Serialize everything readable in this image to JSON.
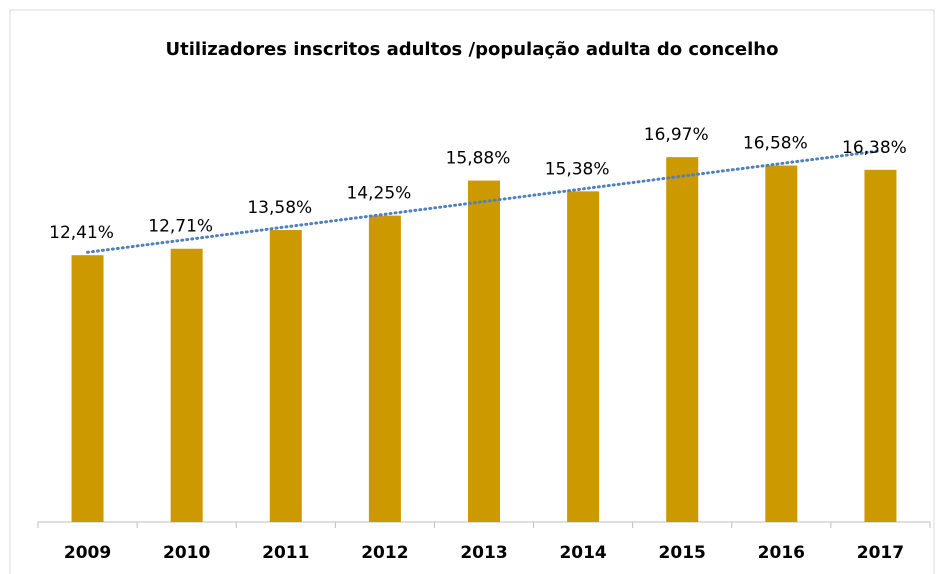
{
  "chart_data": {
    "type": "bar",
    "title": "Utilizadores inscritos adultos /população adulta do concelho",
    "categories": [
      "2009",
      "2010",
      "2011",
      "2012",
      "2013",
      "2014",
      "2015",
      "2016",
      "2017"
    ],
    "values": [
      12.41,
      12.71,
      13.58,
      14.25,
      15.88,
      15.38,
      16.97,
      16.58,
      16.38
    ],
    "value_labels": [
      "12,41%",
      "12,71%",
      "13,58%",
      "14,25%",
      "15,88%",
      "15,38%",
      "16,97%",
      "16,58%",
      "16,38%"
    ],
    "color": "#cc9900",
    "ylim": [
      0,
      18
    ],
    "trendline": {
      "type": "linear",
      "color": "#4f81bd"
    }
  }
}
